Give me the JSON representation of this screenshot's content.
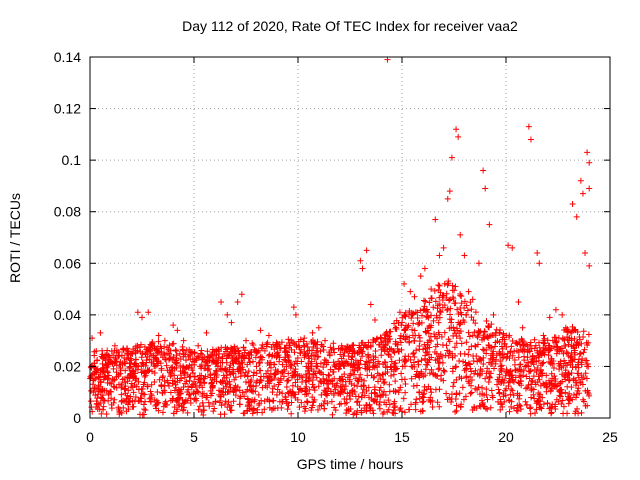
{
  "chart_data": {
    "type": "scatter",
    "title": "Day 112 of 2020, Rate Of TEC Index for receiver vaa2",
    "xlabel": "GPS time / hours",
    "ylabel": "ROTI / TECUs",
    "xlim": [
      0,
      25
    ],
    "ylim": [
      0,
      0.14
    ],
    "xticks": [
      0,
      5,
      10,
      15,
      20,
      25
    ],
    "yticks": [
      0,
      0.02,
      0.04,
      0.06,
      0.08,
      0.1,
      0.12,
      0.14
    ],
    "xtick_labels": [
      "0",
      "5",
      "10",
      "15",
      "20",
      "25"
    ],
    "ytick_labels": [
      "0",
      "0.02",
      "0.04",
      "0.06",
      "0.08",
      "0.1",
      "0.12",
      "0.14"
    ],
    "grid": true,
    "marker": "+",
    "color": "#ff0000",
    "series": [
      {
        "points": [
          [
            0.1,
            0.031
          ],
          [
            0.3,
            0.026
          ],
          [
            0.5,
            0.033
          ],
          [
            0.6,
            0.021
          ],
          [
            0.9,
            0.024
          ],
          [
            1.2,
            0.028
          ],
          [
            1.6,
            0.027
          ],
          [
            1.8,
            0.026
          ],
          [
            2.0,
            0.025
          ],
          [
            2.3,
            0.041
          ],
          [
            2.5,
            0.039
          ],
          [
            2.8,
            0.041
          ],
          [
            3.0,
            0.029
          ],
          [
            3.3,
            0.032
          ],
          [
            3.6,
            0.03
          ],
          [
            4.0,
            0.036
          ],
          [
            4.2,
            0.034
          ],
          [
            4.5,
            0.03
          ],
          [
            5.2,
            0.028
          ],
          [
            5.6,
            0.033
          ],
          [
            5.9,
            0.024
          ],
          [
            6.3,
            0.045
          ],
          [
            6.6,
            0.04
          ],
          [
            6.8,
            0.037
          ],
          [
            7.1,
            0.045
          ],
          [
            7.3,
            0.048
          ],
          [
            7.5,
            0.03
          ],
          [
            7.8,
            0.029
          ],
          [
            8.2,
            0.034
          ],
          [
            8.6,
            0.032
          ],
          [
            9.0,
            0.024
          ],
          [
            9.4,
            0.027
          ],
          [
            9.8,
            0.043
          ],
          [
            9.9,
            0.04
          ],
          [
            10.3,
            0.031
          ],
          [
            10.7,
            0.033
          ],
          [
            11.0,
            0.035
          ],
          [
            11.3,
            0.03
          ],
          [
            11.7,
            0.029
          ],
          [
            12.1,
            0.028
          ],
          [
            12.6,
            0.025
          ],
          [
            13.0,
            0.061
          ],
          [
            13.1,
            0.058
          ],
          [
            13.3,
            0.065
          ],
          [
            13.5,
            0.044
          ],
          [
            13.7,
            0.038
          ],
          [
            14.0,
            0.031
          ],
          [
            14.3,
            0.139
          ],
          [
            14.6,
            0.026
          ],
          [
            14.9,
            0.041
          ],
          [
            15.1,
            0.052
          ],
          [
            15.4,
            0.049
          ],
          [
            15.6,
            0.047
          ],
          [
            15.9,
            0.055
          ],
          [
            16.1,
            0.058
          ],
          [
            16.4,
            0.05
          ],
          [
            16.6,
            0.077
          ],
          [
            16.8,
            0.063
          ],
          [
            17.0,
            0.066
          ],
          [
            17.2,
            0.085
          ],
          [
            17.3,
            0.088
          ],
          [
            17.4,
            0.101
          ],
          [
            17.6,
            0.112
          ],
          [
            17.7,
            0.109
          ],
          [
            17.8,
            0.071
          ],
          [
            18.0,
            0.063
          ],
          [
            18.2,
            0.049
          ],
          [
            18.4,
            0.046
          ],
          [
            18.7,
            0.06
          ],
          [
            18.9,
            0.096
          ],
          [
            19.0,
            0.089
          ],
          [
            19.2,
            0.075
          ],
          [
            19.4,
            0.04
          ],
          [
            19.7,
            0.033
          ],
          [
            20.1,
            0.067
          ],
          [
            20.3,
            0.066
          ],
          [
            20.6,
            0.045
          ],
          [
            20.8,
            0.035
          ],
          [
            21.1,
            0.113
          ],
          [
            21.2,
            0.108
          ],
          [
            21.5,
            0.064
          ],
          [
            21.6,
            0.06
          ],
          [
            21.8,
            0.032
          ],
          [
            22.1,
            0.039
          ],
          [
            22.4,
            0.042
          ],
          [
            22.7,
            0.04
          ],
          [
            22.9,
            0.034
          ],
          [
            23.2,
            0.083
          ],
          [
            23.4,
            0.078
          ],
          [
            23.6,
            0.092
          ],
          [
            23.7,
            0.087
          ],
          [
            23.8,
            0.064
          ],
          [
            23.9,
            0.103
          ],
          [
            24.0,
            0.099
          ],
          [
            24.0,
            0.089
          ],
          [
            24.0,
            0.059
          ]
        ]
      }
    ],
    "base_band": [
      [
        0,
        0.006,
        0.027
      ],
      [
        1,
        0.005,
        0.026
      ],
      [
        2,
        0.005,
        0.028
      ],
      [
        3,
        0.004,
        0.03
      ],
      [
        4,
        0.005,
        0.029
      ],
      [
        5,
        0.004,
        0.026
      ],
      [
        6,
        0.004,
        0.027
      ],
      [
        7,
        0.005,
        0.028
      ],
      [
        8,
        0.006,
        0.029
      ],
      [
        9,
        0.006,
        0.03
      ],
      [
        10,
        0.005,
        0.031
      ],
      [
        11,
        0.005,
        0.03
      ],
      [
        12,
        0.004,
        0.027
      ],
      [
        13,
        0.004,
        0.029
      ],
      [
        14,
        0.005,
        0.032
      ],
      [
        15,
        0.007,
        0.04
      ],
      [
        16,
        0.008,
        0.045
      ],
      [
        17,
        0.01,
        0.055
      ],
      [
        18,
        0.008,
        0.048
      ],
      [
        19,
        0.006,
        0.038
      ],
      [
        20,
        0.005,
        0.033
      ],
      [
        21,
        0.004,
        0.03
      ],
      [
        22,
        0.005,
        0.031
      ],
      [
        23,
        0.005,
        0.036
      ],
      [
        24,
        0.006,
        0.034
      ]
    ]
  }
}
